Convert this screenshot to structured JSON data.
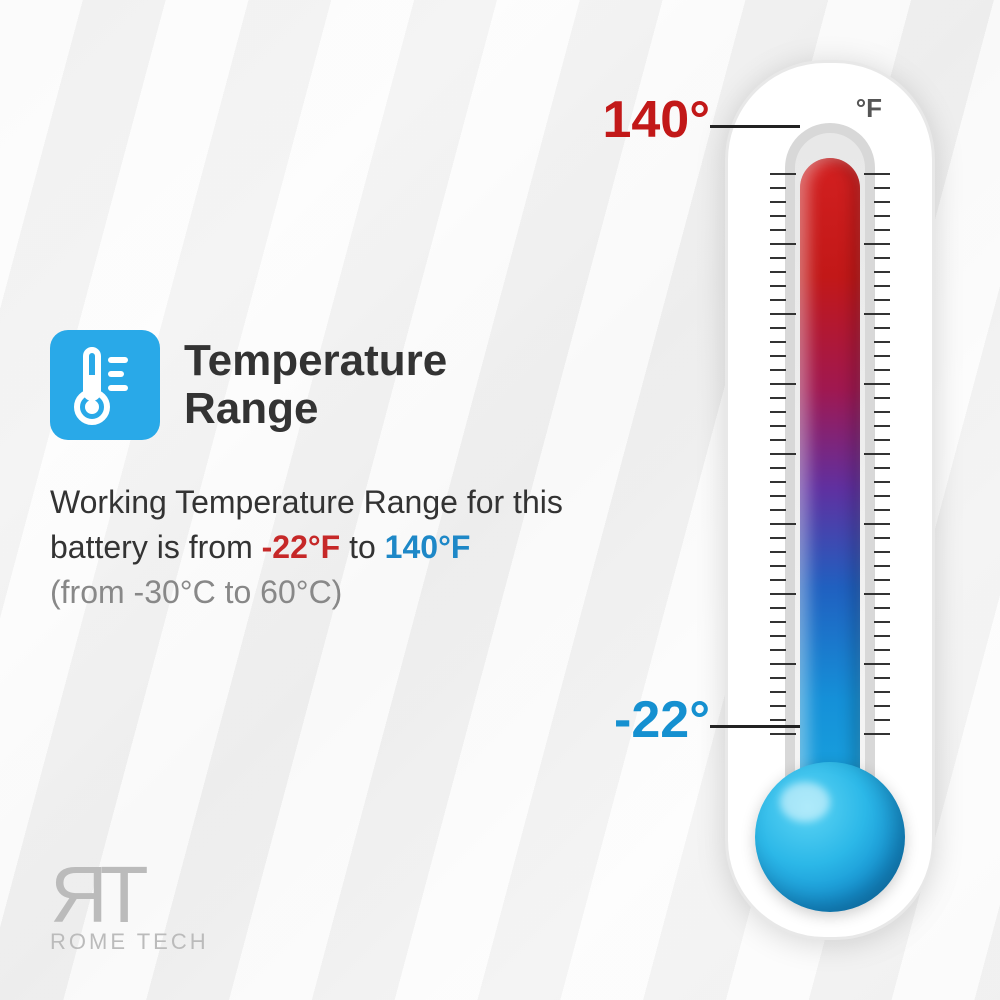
{
  "title": "Temperature Range",
  "description": {
    "prefix": "Working Temperature Range for this battery is from ",
    "low_f": "-22°F",
    "middle": " to ",
    "high_f": "140°F",
    "celsius": "(from -30°C to 60°C)"
  },
  "thermometer": {
    "unit_label": "°F",
    "high_label": "140°",
    "low_label": "-22°",
    "colors": {
      "hot": "#c21818",
      "cold": "#1590d0",
      "icon_bg": "#29a9e8",
      "bulb_gradient": [
        "#5dd5f5",
        "#2cb8e8",
        "#1590d0",
        "#0d70b0"
      ],
      "fluid_gradient": [
        "#d32020",
        "#c21818",
        "#a01850",
        "#6030a0",
        "#2060c0",
        "#1590d8",
        "#19a8e0"
      ]
    },
    "tick_count": 40
  },
  "logo": {
    "mark": "ЯT",
    "name": "ROME TECH"
  }
}
